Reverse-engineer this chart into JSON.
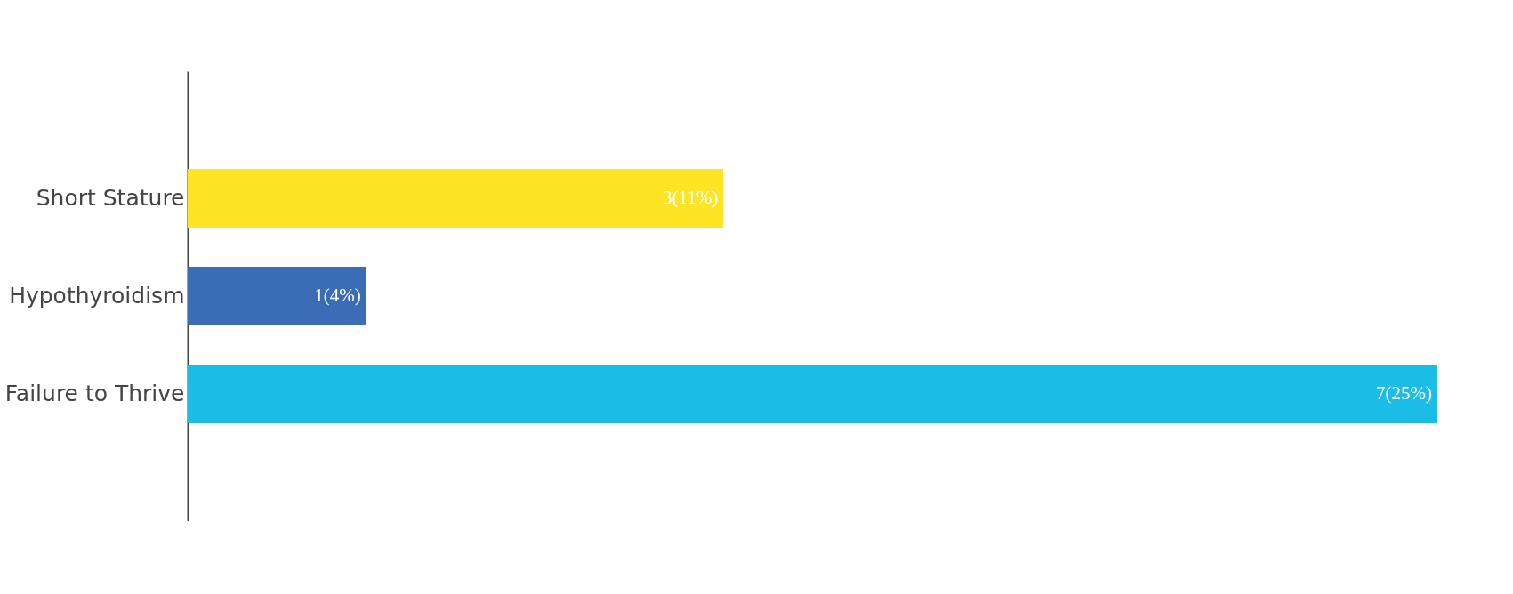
{
  "chart_data": {
    "type": "bar",
    "orientation": "horizontal",
    "categories": [
      "Short Stature",
      "Hypothyroidism",
      "Failure to Thrive"
    ],
    "values": [
      3,
      1,
      7
    ],
    "colors": [
      "#fee524",
      "#3a6db5",
      "#1bbce6"
    ],
    "value_labels": [
      "3(11%)",
      "1(4%)",
      "7(25%)"
    ],
    "xlim": [
      0,
      7
    ],
    "tick_labels": "y"
  }
}
